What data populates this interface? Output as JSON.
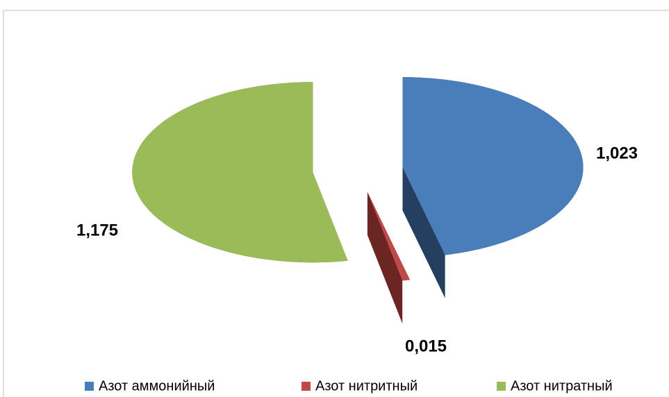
{
  "chart_data": {
    "type": "pie",
    "categories": [
      "Азот аммонийный",
      "Азот нитритный",
      "Азот нитратный"
    ],
    "values": [
      1.023,
      0.015,
      1.175
    ],
    "value_labels": [
      "1,023",
      "0,015",
      "1,175"
    ],
    "colors": [
      "#4a7ebb",
      "#be4b48",
      "#9bbb59"
    ],
    "side_colors": [
      "#243f5f",
      "#6b2624",
      "#4f5f2e"
    ],
    "legend": "bottom"
  }
}
